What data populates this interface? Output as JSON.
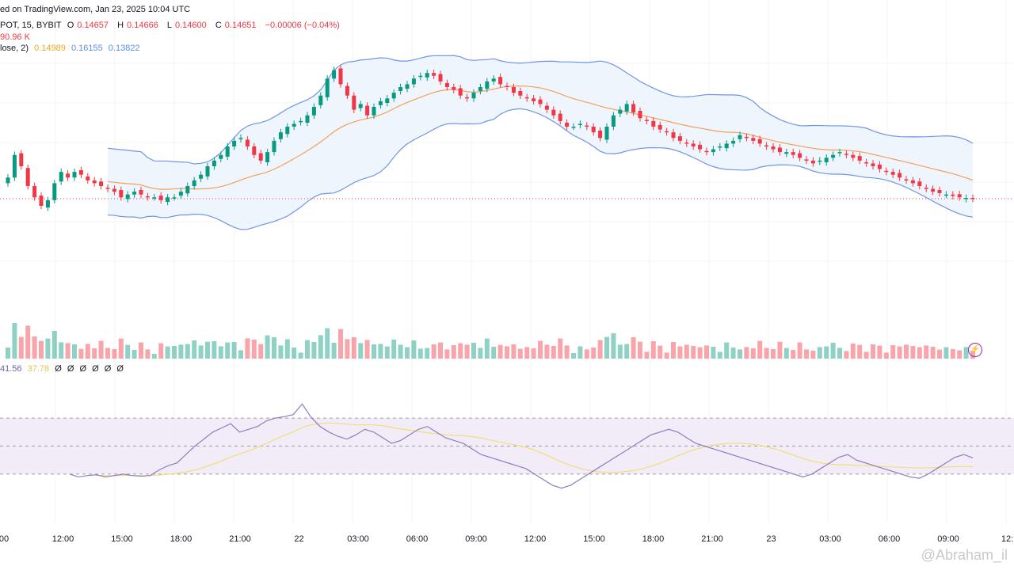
{
  "header": {
    "source": "ed on TradingView.com, Jan 23, 2025 10:04 UTC",
    "symbol": "POT, 15, BYBIT",
    "o_label": "O",
    "o_val": "0.14657",
    "h_label": "H",
    "h_val": "0.14666",
    "l_label": "L",
    "l_val": "0.14600",
    "c_label": "C",
    "c_val": "0.14651",
    "change": "−0.00006 (−0.04%)",
    "volume": "90.96 K",
    "bb_label": "lose, 2)",
    "bb_basis": "0.14989",
    "bb_upper": "0.16155",
    "bb_lower": "0.13822"
  },
  "rsi_header": {
    "rsi": "41.56",
    "rsi_ma": "37.78",
    "extras": [
      "Ø",
      "Ø",
      "Ø",
      "Ø",
      "Ø",
      "Ø"
    ]
  },
  "watermark": "@Abraham_il",
  "colors": {
    "up": "#089981",
    "down": "#f23645",
    "basis": "#f5a05a",
    "band": "#6f95e8",
    "rsi": "#8e7cc3",
    "rsi_ma": "#f2dd7a",
    "rsi_fill": "#ede7f6"
  },
  "chart_data": [
    {
      "type": "candlestick",
      "x_tick_labels": [
        "00",
        "12:00",
        "15:00",
        "18:00",
        "21:00",
        "22",
        "03:00",
        "06:00",
        "09:00",
        "12:00",
        "15:00",
        "18:00",
        "21:00",
        "23",
        "03:00",
        "06:00",
        "09:00",
        "12:"
      ],
      "last_price": 0.14651,
      "close": [
        0.154,
        0.162,
        0.158,
        0.151,
        0.147,
        0.144,
        0.146,
        0.152,
        0.156,
        0.154,
        0.156,
        0.155,
        0.153,
        0.152,
        0.151,
        0.15,
        0.149,
        0.147,
        0.148,
        0.149,
        0.148,
        0.147,
        0.147,
        0.146,
        0.147,
        0.147,
        0.149,
        0.151,
        0.153,
        0.155,
        0.158,
        0.16,
        0.162,
        0.165,
        0.167,
        0.168,
        0.165,
        0.162,
        0.16,
        0.163,
        0.167,
        0.17,
        0.172,
        0.173,
        0.174,
        0.176,
        0.179,
        0.183,
        0.189,
        0.192,
        0.187,
        0.183,
        0.178,
        0.18,
        0.176,
        0.179,
        0.181,
        0.182,
        0.184,
        0.186,
        0.187,
        0.189,
        0.19,
        0.191,
        0.19,
        0.188,
        0.186,
        0.185,
        0.183,
        0.182,
        0.184,
        0.186,
        0.188,
        0.189,
        0.187,
        0.186,
        0.184,
        0.183,
        0.182,
        0.181,
        0.18,
        0.178,
        0.176,
        0.174,
        0.172,
        0.172,
        0.173,
        0.172,
        0.17,
        0.168,
        0.172,
        0.176,
        0.178,
        0.18,
        0.177,
        0.175,
        0.174,
        0.172,
        0.171,
        0.17,
        0.168,
        0.167,
        0.166,
        0.165,
        0.164,
        0.163,
        0.164,
        0.165,
        0.166,
        0.167,
        0.169,
        0.168,
        0.167,
        0.166,
        0.165,
        0.164,
        0.163,
        0.163,
        0.162,
        0.161,
        0.16,
        0.159,
        0.16,
        0.161,
        0.162,
        0.163,
        0.162,
        0.161,
        0.16,
        0.159,
        0.158,
        0.157,
        0.156,
        0.155,
        0.154,
        0.153,
        0.152,
        0.151,
        0.15,
        0.149,
        0.1485,
        0.148,
        0.1475,
        0.147,
        0.1468,
        0.1465
      ]
    },
    {
      "type": "line",
      "name": "RSI",
      "ylim": [
        0,
        100
      ],
      "levels": [
        70,
        50,
        30
      ],
      "values": [
        30.0,
        28.0,
        29.0,
        29.5,
        28.0,
        29.0,
        30.0,
        29.0,
        28.5,
        29.0,
        33.0,
        36.0,
        38.0,
        44.0,
        50.0,
        55.0,
        60.0,
        63.0,
        66.0,
        60.0,
        62.0,
        64.0,
        68.0,
        70.0,
        71.0,
        72.5,
        80.0,
        70.5,
        64.0,
        60.0,
        57.0,
        55.0,
        58.0,
        62.0,
        60.0,
        56.0,
        52.0,
        54.0,
        58.0,
        62.0,
        64.0,
        60.0,
        56.0,
        54.0,
        52.0,
        48.0,
        44.0,
        42.0,
        40.0,
        38.0,
        36.0,
        34.0,
        30.0,
        26.0,
        22.0,
        20.0,
        22.0,
        26.0,
        30.0,
        34.0,
        38.0,
        42.0,
        46.0,
        50.0,
        54.0,
        58.0,
        60.0,
        62.0,
        60.0,
        56.0,
        52.0,
        50.0,
        48.0,
        46.0,
        44.0,
        42.0,
        40.0,
        38.0,
        36.0,
        34.0,
        32.0,
        30.0,
        28.0,
        30.0,
        34.0,
        38.0,
        42.0,
        44.0,
        40.0,
        38.0,
        36.0,
        34.0,
        32.0,
        30.0,
        28.0,
        27.0,
        30.0,
        34.0,
        38.0,
        42.0,
        44.0,
        41.56
      ]
    }
  ]
}
